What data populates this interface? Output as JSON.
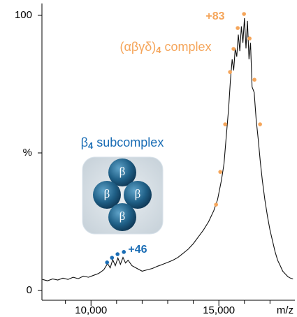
{
  "chart_data": {
    "type": "line",
    "xlim": [
      8080,
      17920
    ],
    "ylim": [
      0,
      100
    ],
    "xticks": [
      {
        "value": 10000,
        "label": "10,000"
      },
      {
        "value": 15000,
        "label": "15,000"
      }
    ],
    "minor_xticks": [
      9000,
      11000,
      12000,
      13000,
      14000,
      16000,
      17000
    ],
    "yticks": [
      0,
      {
        "value": 50,
        "label": "%"
      },
      100
    ],
    "xlabel": "m/z",
    "series": [
      {
        "color": "#111111",
        "x": [
          8100,
          8300,
          8500,
          8700,
          8900,
          9100,
          9300,
          9500,
          9700,
          9900,
          10100,
          10300,
          10500,
          10650,
          10750,
          10850,
          10950,
          11050,
          11150,
          11250,
          11350,
          11450,
          11600,
          11800,
          12000,
          12200,
          12400,
          12600,
          12800,
          13000,
          13200,
          13400,
          13600,
          13800,
          14000,
          14200,
          14400,
          14600,
          14800,
          14950,
          15100,
          15200,
          15300,
          15380,
          15450,
          15520,
          15580,
          15640,
          15700,
          15760,
          15820,
          15880,
          15940,
          16000,
          16060,
          16120,
          16180,
          16240,
          16300,
          16380,
          16460,
          16540,
          16620,
          16700,
          16800,
          16900,
          17000,
          17100,
          17200,
          17300,
          17400,
          17500,
          17600,
          17700,
          17800,
          17900
        ],
        "values": [
          4,
          3.5,
          4.2,
          3.8,
          4.5,
          4,
          4.8,
          4.3,
          5.2,
          4.8,
          5.5,
          6.2,
          7.5,
          9.8,
          8.2,
          11.2,
          9,
          11.8,
          9.5,
          12,
          10,
          11,
          9,
          8,
          7,
          7.5,
          8,
          8.8,
          9.5,
          10.2,
          11,
          12,
          13.5,
          15,
          17,
          19.5,
          22,
          25,
          29,
          33,
          40,
          46,
          57,
          66,
          76,
          84,
          80,
          88,
          85,
          93,
          87,
          96,
          90,
          99,
          88,
          98,
          84,
          90,
          74,
          72,
          62,
          55,
          47,
          40,
          33,
          27,
          22,
          18,
          14,
          11,
          9,
          7,
          6,
          5,
          4.5,
          4.2
        ]
      },
      {
        "type": "scatter",
        "color": "#f5a55a",
        "x": [
          14891,
          15055,
          15246,
          15437,
          15574,
          15738,
          15984,
          16202,
          16393,
          16612
        ],
        "values": [
          31.2,
          43.1,
          60.4,
          79.4,
          87.8,
          95.4,
          100.5,
          91.6,
          76.6,
          60.4
        ]
      },
      {
        "type": "scatter",
        "color": "#1a6db5",
        "x": [
          10628,
          10820,
          11038,
          11284
        ],
        "values": [
          10.2,
          11.9,
          13.2,
          14
        ]
      }
    ],
    "annotations": [
      {
        "text": "+83",
        "color": "#f5a55a"
      },
      {
        "text": "(αβγδ)",
        "sub": "4",
        "tail": " complex",
        "color": "#f5a55a"
      },
      {
        "text": "β",
        "sub": "4",
        "tail": " subcomplex",
        "color": "#1a6db5"
      },
      {
        "text": "+46",
        "color": "#1a6db5"
      }
    ],
    "inset_labels": [
      "β",
      "β",
      "β",
      "β"
    ]
  }
}
